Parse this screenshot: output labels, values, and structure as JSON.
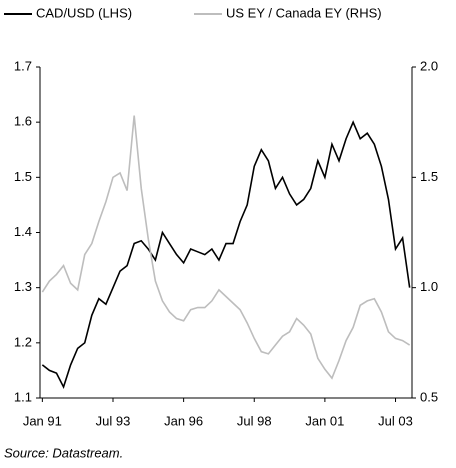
{
  "chart_data": {
    "type": "line",
    "source": "Source: Datastream.",
    "x": [
      "1991-01",
      "1991-04",
      "1991-07",
      "1991-10",
      "1992-01",
      "1992-04",
      "1992-07",
      "1992-10",
      "1993-01",
      "1993-04",
      "1993-07",
      "1993-10",
      "1994-01",
      "1994-04",
      "1994-07",
      "1994-10",
      "1995-01",
      "1995-04",
      "1995-07",
      "1995-10",
      "1996-01",
      "1996-04",
      "1996-07",
      "1996-10",
      "1997-01",
      "1997-04",
      "1997-07",
      "1997-10",
      "1998-01",
      "1998-04",
      "1998-07",
      "1998-10",
      "1999-01",
      "1999-04",
      "1999-07",
      "1999-10",
      "2000-01",
      "2000-04",
      "2000-07",
      "2000-10",
      "2001-01",
      "2001-04",
      "2001-07",
      "2001-10",
      "2002-01",
      "2002-04",
      "2002-07",
      "2002-10",
      "2003-01",
      "2003-04",
      "2003-07",
      "2003-10",
      "2004-01"
    ],
    "series": [
      {
        "name": "CAD/USD (LHS)",
        "color": "#000000",
        "axis": "y",
        "values": [
          1.16,
          1.15,
          1.145,
          1.12,
          1.16,
          1.19,
          1.2,
          1.25,
          1.28,
          1.27,
          1.3,
          1.33,
          1.34,
          1.38,
          1.385,
          1.37,
          1.35,
          1.4,
          1.38,
          1.36,
          1.345,
          1.37,
          1.365,
          1.36,
          1.37,
          1.35,
          1.38,
          1.38,
          1.42,
          1.45,
          1.52,
          1.55,
          1.53,
          1.48,
          1.5,
          1.47,
          1.45,
          1.46,
          1.48,
          1.53,
          1.5,
          1.56,
          1.53,
          1.57,
          1.6,
          1.57,
          1.58,
          1.56,
          1.52,
          1.46,
          1.37,
          1.39,
          1.3
        ]
      },
      {
        "name": "US EY / Canada EY (RHS)",
        "color": "#bdbdbd",
        "axis": "y2",
        "values": [
          0.98,
          1.03,
          1.06,
          1.1,
          1.02,
          0.99,
          1.15,
          1.2,
          1.3,
          1.39,
          1.5,
          1.52,
          1.44,
          1.78,
          1.45,
          1.22,
          1.03,
          0.94,
          0.89,
          0.86,
          0.85,
          0.9,
          0.91,
          0.91,
          0.94,
          0.99,
          0.96,
          0.93,
          0.9,
          0.84,
          0.77,
          0.71,
          0.7,
          0.74,
          0.78,
          0.8,
          0.86,
          0.83,
          0.79,
          0.68,
          0.63,
          0.59,
          0.67,
          0.76,
          0.82,
          0.92,
          0.94,
          0.95,
          0.89,
          0.8,
          0.77,
          0.76,
          0.74
        ]
      }
    ],
    "xlim": [
      "1990-12",
      "2004-02"
    ],
    "xticks": [
      {
        "value": "1991-01",
        "label": "Jan 91"
      },
      {
        "value": "1993-07",
        "label": "Jul 93"
      },
      {
        "value": "1996-01",
        "label": "Jan 96"
      },
      {
        "value": "1998-07",
        "label": "Jul 98"
      },
      {
        "value": "2001-01",
        "label": "Jan 01"
      },
      {
        "value": "2003-07",
        "label": "Jul 03"
      }
    ],
    "ylim": [
      1.1,
      1.7
    ],
    "yticks": [
      1.1,
      1.2,
      1.3,
      1.4,
      1.5,
      1.6,
      1.7
    ],
    "y2lim": [
      0.5,
      2.0
    ],
    "y2ticks": [
      0.5,
      {
        "value": 1.0,
        "label": "1.0"
      },
      1.5,
      {
        "value": 2.0,
        "label": "2.0"
      }
    ],
    "legend": "top"
  }
}
